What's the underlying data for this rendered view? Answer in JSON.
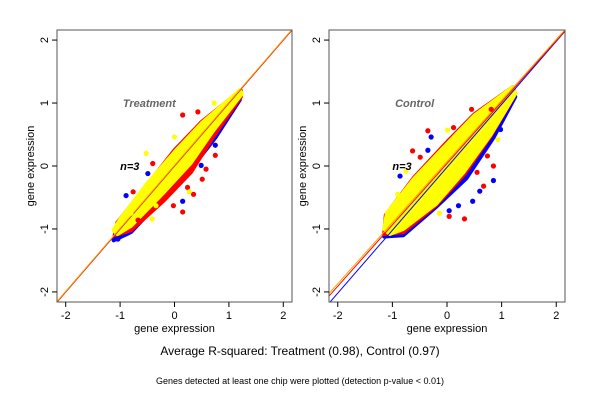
{
  "caption": "Average R-squared: Treatment (0.98), Control (0.97)",
  "footnote": "Genes detected at least one chip were plotted (detection p-value < 0.01)",
  "chart_data": [
    {
      "type": "scatter",
      "xlabel": "gene expression",
      "ylabel": "gene expression",
      "xlim": [
        -2.16,
        2.16
      ],
      "ylim": [
        -2.16,
        2.16
      ],
      "xticks": [
        "-2",
        "-1",
        "0",
        "1",
        "2"
      ],
      "yticks": [
        "-2",
        "-1",
        "0",
        "1",
        "2"
      ],
      "grid": false,
      "annotations": [
        {
          "text": "Treatment",
          "x": -0.95,
          "y": 1.0,
          "style": "title"
        },
        {
          "text": "n=3",
          "x": -1.0,
          "y": 0.0,
          "style": "n"
        }
      ],
      "lines": [
        {
          "color": "#0000ff",
          "slope": 1.0,
          "intercept": 0.0
        },
        {
          "color": "#ff0000",
          "slope": 1.0,
          "intercept": 0.0
        },
        {
          "color": "#ffa500",
          "slope": 1.0,
          "intercept": 0.01
        }
      ],
      "series": [
        {
          "color": "#0000ff",
          "cloud": [
            [
              -1.12,
              -1.18
            ],
            [
              -1.0,
              -0.95
            ],
            [
              -0.5,
              -0.35
            ],
            [
              0.0,
              0.1
            ],
            [
              0.5,
              0.5
            ],
            [
              1.22,
              1.15
            ],
            [
              1.2,
              1.05
            ],
            [
              0.75,
              0.45
            ],
            [
              0.3,
              -0.05
            ],
            [
              -0.2,
              -0.5
            ],
            [
              -0.8,
              -1.05
            ]
          ],
          "points": [
            [
              -0.89,
              -0.47
            ],
            [
              0.15,
              -0.56
            ],
            [
              0.75,
              0.33
            ],
            [
              0.49,
              0.01
            ],
            [
              -1.04,
              -1.16
            ],
            [
              -0.49,
              -0.12
            ]
          ]
        },
        {
          "color": "#ff0000",
          "cloud": [
            [
              -1.1,
              -1.1
            ],
            [
              -1.05,
              -0.9
            ],
            [
              -0.5,
              -0.3
            ],
            [
              0.0,
              0.25
            ],
            [
              0.5,
              0.7
            ],
            [
              1.22,
              1.2
            ],
            [
              1.22,
              1.1
            ],
            [
              0.7,
              0.45
            ],
            [
              0.3,
              -0.1
            ],
            [
              -0.2,
              -0.55
            ],
            [
              -0.8,
              -1.02
            ]
          ],
          "points": [
            [
              0.15,
              0.81
            ],
            [
              0.51,
              -0.21
            ],
            [
              0.15,
              -0.73
            ],
            [
              -0.02,
              -0.63
            ],
            [
              0.75,
              0.17
            ],
            [
              -0.4,
              0.04
            ],
            [
              -0.76,
              -0.41
            ],
            [
              0.24,
              -0.34
            ],
            [
              -0.67,
              -0.86
            ],
            [
              0.43,
              0.86
            ],
            [
              0.58,
              -0.05
            ],
            [
              0.35,
              -0.45
            ]
          ]
        },
        {
          "color": "#ffff00",
          "cloud": [
            [
              -1.12,
              -1.02
            ],
            [
              -1.0,
              -0.85
            ],
            [
              -0.5,
              -0.28
            ],
            [
              0.0,
              0.22
            ],
            [
              0.5,
              0.68
            ],
            [
              1.2,
              1.2
            ],
            [
              1.24,
              1.15
            ],
            [
              0.7,
              0.55
            ],
            [
              0.3,
              0.05
            ],
            [
              -0.2,
              -0.42
            ],
            [
              -0.8,
              -0.95
            ],
            [
              -1.05,
              -1.08
            ]
          ],
          "points": [
            [
              -0.52,
              0.2
            ],
            [
              0.73,
              1.0
            ],
            [
              0.0,
              0.46
            ],
            [
              -0.34,
              -0.63
            ],
            [
              0.27,
              -0.41
            ],
            [
              -0.41,
              -0.84
            ],
            [
              -0.8,
              -0.75
            ]
          ]
        }
      ]
    },
    {
      "type": "scatter",
      "xlabel": "gene expression",
      "ylabel": "gene expression",
      "xlim": [
        -2.16,
        2.16
      ],
      "ylim": [
        -2.16,
        2.16
      ],
      "xticks": [
        "-2",
        "-1",
        "0",
        "1",
        "2"
      ],
      "yticks": [
        "-2",
        "-1",
        "0",
        "1",
        "2"
      ],
      "grid": false,
      "annotations": [
        {
          "text": "Control",
          "x": -0.95,
          "y": 1.0,
          "style": "title"
        },
        {
          "text": "n=3",
          "x": -1.0,
          "y": 0.0,
          "style": "n"
        }
      ],
      "lines": [
        {
          "color": "#0000ff",
          "slope": 1.0,
          "intercept": -0.02
        },
        {
          "color": "#ff0000",
          "slope": 0.975,
          "intercept": 0.04
        },
        {
          "color": "#ffa500",
          "slope": 0.97,
          "intercept": 0.07
        }
      ],
      "series": [
        {
          "color": "#0000ff",
          "cloud": [
            [
              -1.15,
              -1.12
            ],
            [
              -1.1,
              -0.8
            ],
            [
              -0.6,
              -0.25
            ],
            [
              0.0,
              0.3
            ],
            [
              0.5,
              0.7
            ],
            [
              1.22,
              1.22
            ],
            [
              1.25,
              1.1
            ],
            [
              0.85,
              0.45
            ],
            [
              0.35,
              -0.2
            ],
            [
              -0.2,
              -0.65
            ],
            [
              -0.8,
              -1.1
            ]
          ],
          "points": [
            [
              -0.86,
              -0.16
            ],
            [
              -0.29,
              0.46
            ],
            [
              0.85,
              -0.23
            ],
            [
              0.47,
              -0.56
            ],
            [
              0.21,
              -0.63
            ],
            [
              0.98,
              0.58
            ],
            [
              0.04,
              -0.71
            ],
            [
              -0.35,
              0.25
            ],
            [
              0.6,
              -0.4
            ]
          ]
        },
        {
          "color": "#ff0000",
          "cloud": [
            [
              -1.15,
              -1.08
            ],
            [
              -1.12,
              -0.78
            ],
            [
              -0.6,
              -0.18
            ],
            [
              0.0,
              0.38
            ],
            [
              0.5,
              0.82
            ],
            [
              1.2,
              1.25
            ],
            [
              1.25,
              1.15
            ],
            [
              0.8,
              0.48
            ],
            [
              0.3,
              -0.15
            ],
            [
              -0.2,
              -0.62
            ],
            [
              -0.8,
              -1.05
            ]
          ],
          "points": [
            [
              -0.35,
              0.56
            ],
            [
              -0.63,
              0.24
            ],
            [
              0.85,
              0.0
            ],
            [
              0.32,
              -0.84
            ],
            [
              0.04,
              -0.8
            ],
            [
              0.67,
              -0.32
            ],
            [
              0.81,
              0.9
            ],
            [
              -0.49,
              0.14
            ],
            [
              0.12,
              0.61
            ],
            [
              0.45,
              0.9
            ],
            [
              0.74,
              0.16
            ],
            [
              0.55,
              -0.1
            ]
          ]
        },
        {
          "color": "#ffff00",
          "cloud": [
            [
              -1.15,
              -1.0
            ],
            [
              -1.1,
              -0.75
            ],
            [
              -0.6,
              -0.2
            ],
            [
              0.0,
              0.35
            ],
            [
              0.5,
              0.8
            ],
            [
              1.2,
              1.25
            ],
            [
              1.25,
              1.15
            ],
            [
              0.8,
              0.5
            ],
            [
              0.3,
              -0.1
            ],
            [
              -0.2,
              -0.6
            ],
            [
              -0.8,
              -1.0
            ],
            [
              -1.05,
              -1.08
            ]
          ],
          "points": [
            [
              0.01,
              0.57
            ],
            [
              -0.9,
              -0.45
            ],
            [
              -0.14,
              -0.75
            ],
            [
              -0.75,
              -0.08
            ],
            [
              0.93,
              0.42
            ],
            [
              0.74,
              0.46
            ]
          ]
        }
      ]
    }
  ]
}
